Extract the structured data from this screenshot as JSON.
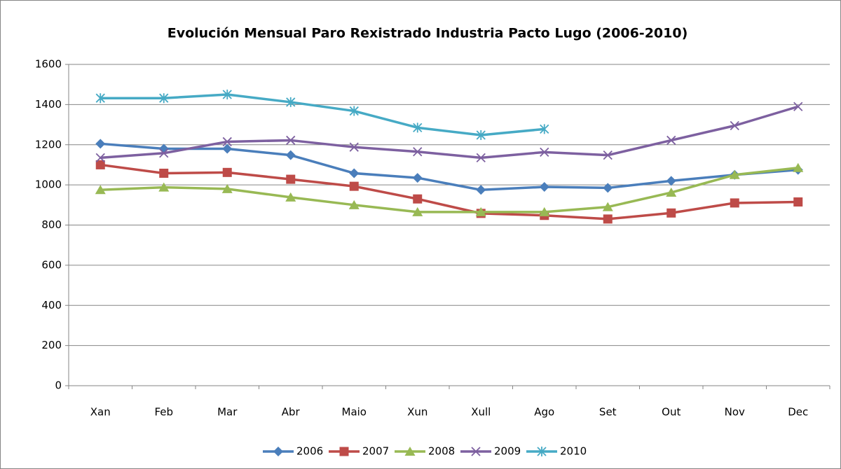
{
  "chart_data": {
    "type": "line",
    "title": "Evolución Mensual Paro Rexistrado Industria Pacto Lugo (2006-2010)",
    "categories": [
      "Xan",
      "Feb",
      "Mar",
      "Abr",
      "Maio",
      "Xun",
      "Xull",
      "Ago",
      "Set",
      "Out",
      "Nov",
      "Dec"
    ],
    "series": [
      {
        "name": "2006",
        "color": "#4a7ebb",
        "marker": "diamond",
        "values": [
          1205,
          1180,
          1180,
          1148,
          1058,
          1035,
          975,
          990,
          985,
          1020,
          1050,
          1075
        ]
      },
      {
        "name": "2007",
        "color": "#be4b48",
        "marker": "square",
        "values": [
          1100,
          1058,
          1062,
          1028,
          993,
          930,
          858,
          848,
          830,
          860,
          910,
          915
        ]
      },
      {
        "name": "2008",
        "color": "#98b954",
        "marker": "triangle",
        "values": [
          975,
          988,
          980,
          938,
          900,
          865,
          865,
          865,
          890,
          962,
          1050,
          1085
        ]
      },
      {
        "name": "2009",
        "color": "#7d60a0",
        "marker": "x",
        "values": [
          1135,
          1158,
          1215,
          1222,
          1188,
          1165,
          1135,
          1163,
          1148,
          1222,
          1295,
          1390
        ]
      },
      {
        "name": "2010",
        "color": "#46aac5",
        "marker": "star",
        "values": [
          1432,
          1432,
          1450,
          1412,
          1368,
          1285,
          1248,
          1278,
          null,
          null,
          null,
          null
        ]
      }
    ],
    "ylim": [
      0,
      1600
    ],
    "yticks": [
      0,
      200,
      400,
      600,
      800,
      1000,
      1200,
      1400,
      1600
    ],
    "grid": true,
    "legend": "bottom"
  }
}
